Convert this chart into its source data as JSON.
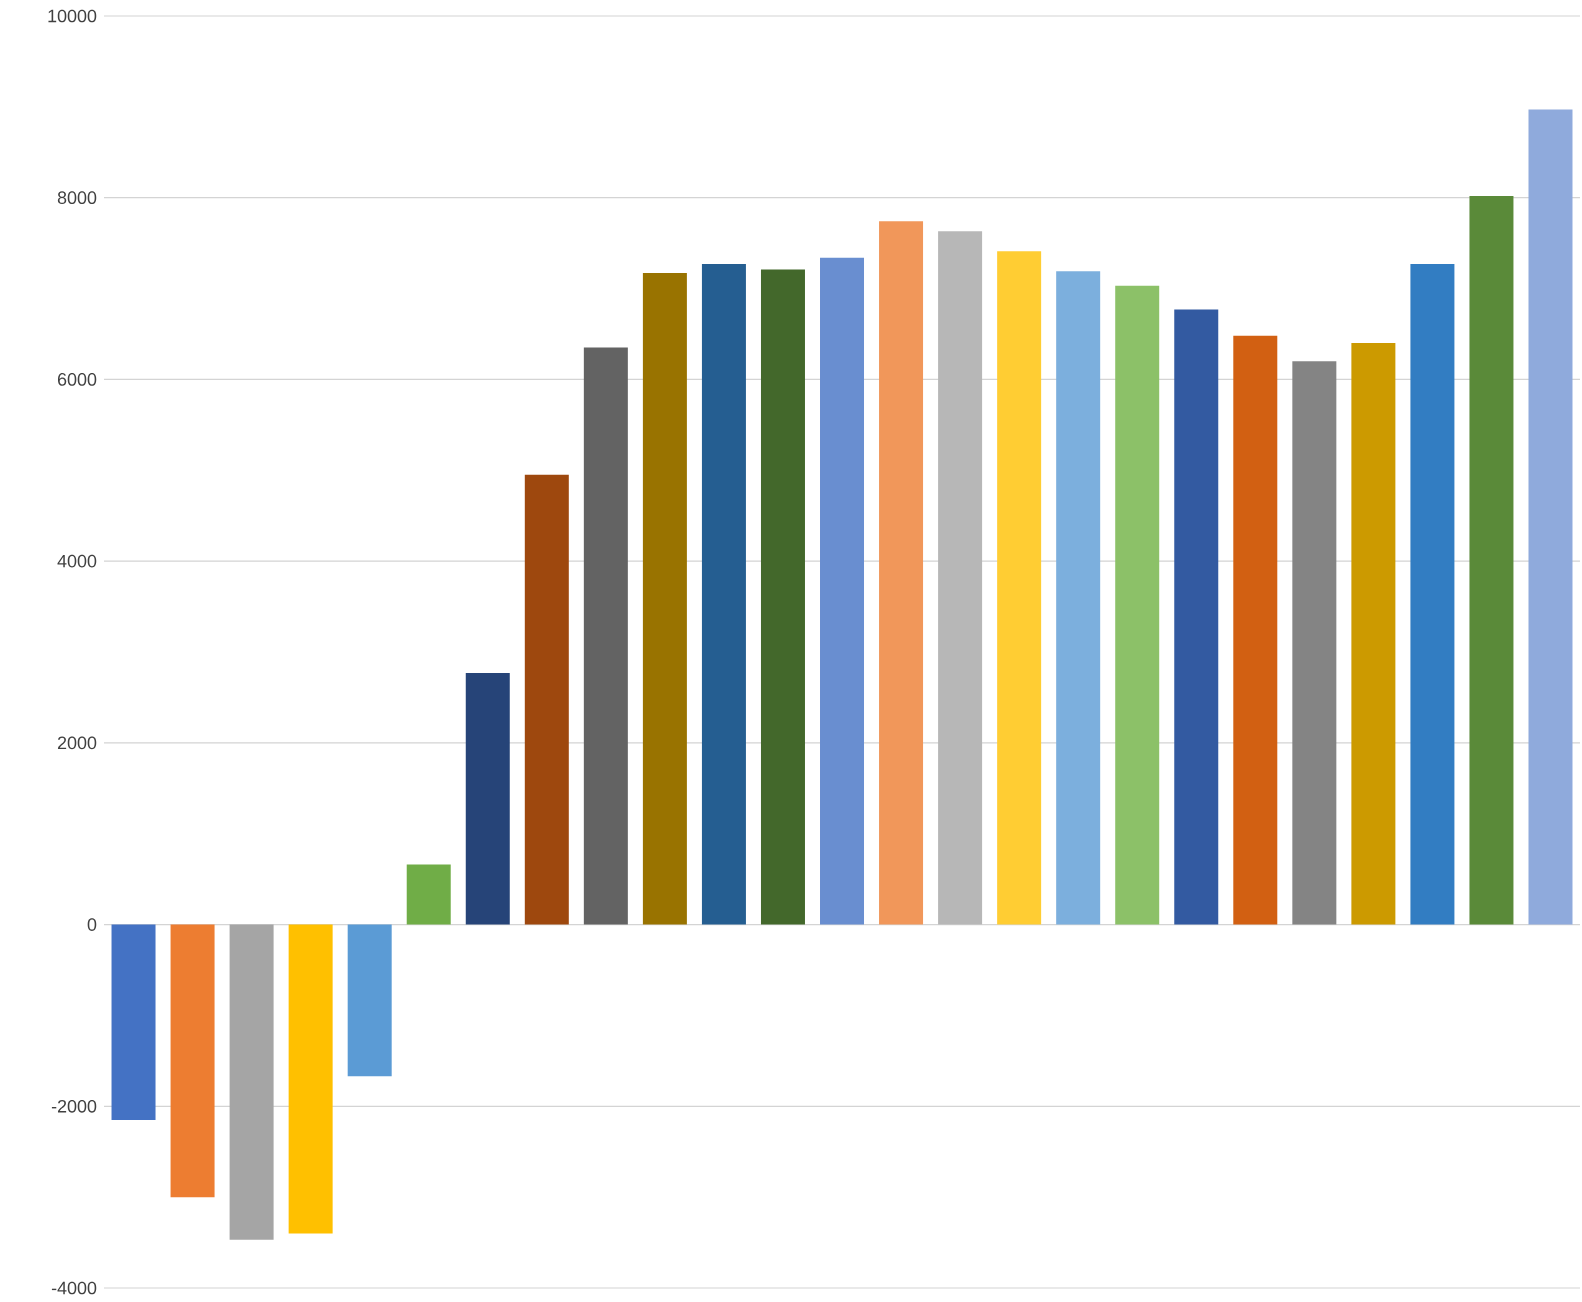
{
  "chart_data": {
    "type": "bar",
    "categories": [
      null,
      null,
      null,
      null,
      null,
      null,
      null,
      null,
      null,
      null,
      null,
      null,
      null,
      null,
      null,
      null,
      null,
      null,
      null,
      null,
      null,
      null,
      null,
      null,
      null
    ],
    "values": [
      -2150,
      -3000,
      -3470,
      -3400,
      -1670,
      660,
      2770,
      4950,
      6350,
      7170,
      7270,
      7210,
      7340,
      7740,
      7630,
      7410,
      7190,
      7030,
      6770,
      6480,
      6200,
      6400,
      7270,
      8020,
      8970
    ],
    "colors": [
      "#4472c4",
      "#ed7d31",
      "#a5a5a5",
      "#ffc000",
      "#5b9bd5",
      "#70ad47",
      "#264478",
      "#9e480e",
      "#636363",
      "#997300",
      "#255e91",
      "#43682b",
      "#698ed0",
      "#f1975a",
      "#b7b7b7",
      "#ffcd33",
      "#7cafdd",
      "#8cc168",
      "#335aa1",
      "#d26012",
      "#848484",
      "#cc9a00",
      "#327dc2",
      "#5a8a39",
      "#8faadc"
    ],
    "ylim": [
      -4000,
      10000
    ],
    "yticks": [
      -4000,
      -2000,
      0,
      2000,
      4000,
      6000,
      8000,
      10000
    ],
    "grid": "y",
    "tick_labels": "y"
  }
}
